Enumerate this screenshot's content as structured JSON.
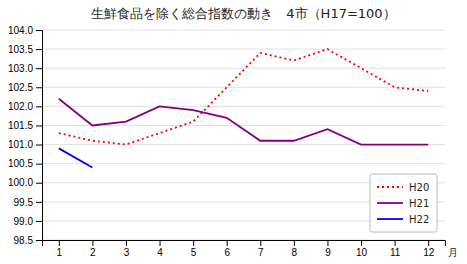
{
  "chart_data": {
    "type": "line",
    "title": "生鮮食品を除く総合指数の動き　4市（H17=100）",
    "x_label": "月",
    "x": [
      1,
      2,
      3,
      4,
      5,
      6,
      7,
      8,
      9,
      10,
      11,
      12
    ],
    "xlim": [
      0.5,
      12.5
    ],
    "xticks": [
      1,
      2,
      3,
      4,
      5,
      6,
      7,
      8,
      9,
      10,
      11,
      12
    ],
    "ylim": [
      98.5,
      104.0
    ],
    "yticks": [
      98.5,
      {
        "value": 99.0,
        "label": "99.0"
      },
      99.5,
      {
        "value": 100.0,
        "label": "100.0"
      },
      100.5,
      {
        "value": 101.0,
        "label": "101.0"
      },
      101.5,
      {
        "value": 102.0,
        "label": "102.0"
      },
      102.5,
      {
        "value": 103.0,
        "label": "103.0"
      },
      103.5,
      {
        "value": 104.0,
        "label": "104.0"
      }
    ],
    "grid": true,
    "legend": "lower right",
    "series": [
      {
        "name": "H20",
        "color": "#ff0000",
        "line_style": "dotted",
        "values": [
          101.3,
          101.1,
          101.0,
          101.3,
          101.6,
          102.5,
          103.4,
          103.2,
          103.5,
          103.0,
          102.5,
          102.4
        ]
      },
      {
        "name": "H21",
        "color": "#800080",
        "line_style": "solid",
        "values": [
          102.2,
          101.5,
          101.6,
          102.0,
          101.9,
          101.7,
          101.1,
          101.1,
          101.4,
          101.0,
          101.0,
          101.0
        ]
      },
      {
        "name": "H22",
        "color": "#0000ff",
        "line_style": "solid",
        "values": [
          100.9,
          100.4,
          null,
          null,
          null,
          null,
          null,
          null,
          null,
          null,
          null,
          null
        ]
      }
    ]
  }
}
